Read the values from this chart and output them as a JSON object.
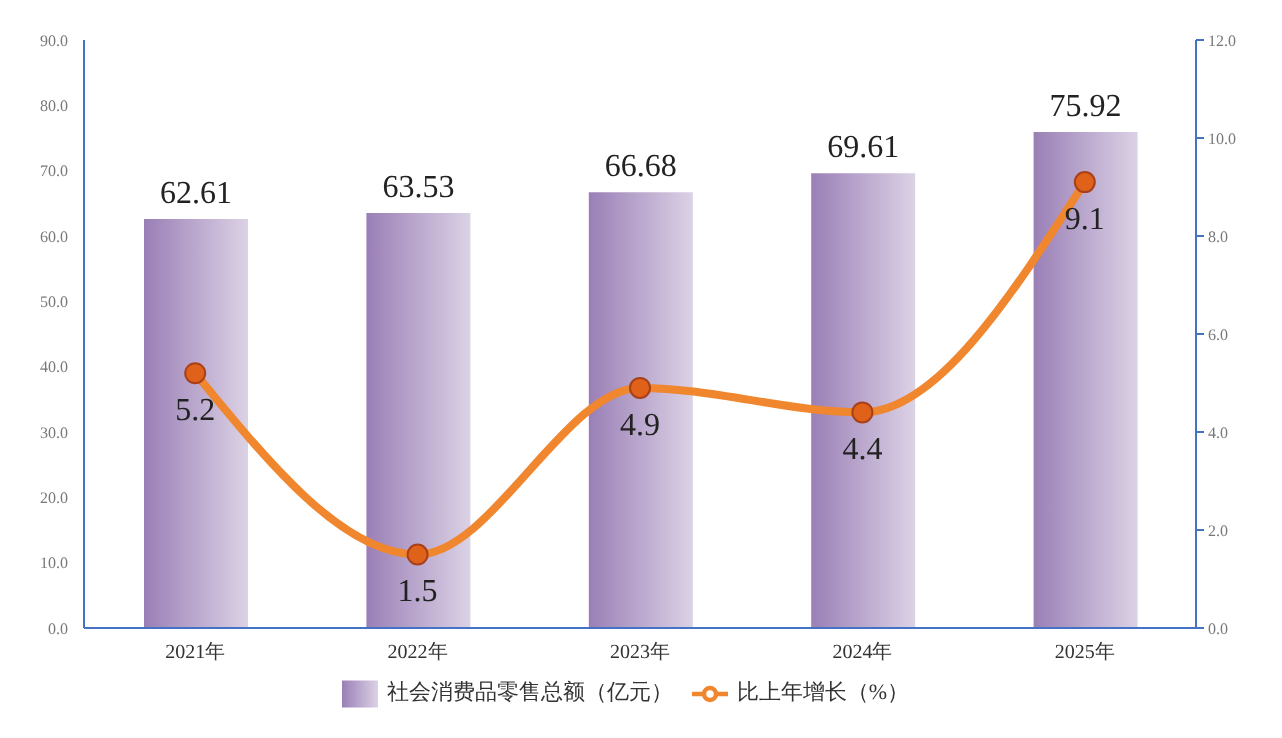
{
  "chart_data": {
    "type": "bar",
    "categories": [
      "2021年",
      "2022年",
      "2023年",
      "2024年",
      "2025年"
    ],
    "series": [
      {
        "name": "社会消费品零售总额（亿元）",
        "color": "#9a7fb6",
        "values": [
          62.61,
          63.53,
          66.68,
          69.61,
          75.92
        ]
      },
      {
        "name": "比上年增长（%）",
        "type": "line",
        "axis": "y2",
        "color": "#f0862e",
        "values": [
          5.2,
          1.5,
          4.9,
          4.4,
          9.1
        ]
      }
    ],
    "ylim": [
      0,
      90
    ],
    "yticks": [
      {
        "value": 0,
        "label": "0.0"
      },
      {
        "value": 10,
        "label": "10.0"
      },
      {
        "value": 20,
        "label": "20.0"
      },
      {
        "value": 30,
        "label": "30.0"
      },
      {
        "value": 40,
        "label": "40.0"
      },
      {
        "value": 50,
        "label": "50.0"
      },
      {
        "value": 60,
        "label": "60.0"
      },
      {
        "value": 70,
        "label": "70.0"
      },
      {
        "value": 80,
        "label": "80.0"
      },
      {
        "value": 90,
        "label": "90.0"
      }
    ],
    "y2lim": [
      0,
      12
    ],
    "y2ticks": [
      {
        "value": 0,
        "label": "0.0"
      },
      {
        "value": 2,
        "label": "2.0"
      },
      {
        "value": 4,
        "label": "4.0"
      },
      {
        "value": 6,
        "label": "6.0"
      },
      {
        "value": 8,
        "label": "8.0"
      },
      {
        "value": 10,
        "label": "10.0"
      },
      {
        "value": 12,
        "label": "12.0"
      }
    ],
    "data_labels": true,
    "legend": "bottom",
    "marker": "circle",
    "grid": false
  }
}
